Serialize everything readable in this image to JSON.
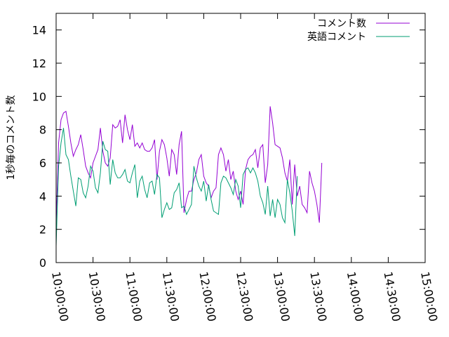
{
  "chart_data": {
    "type": "line",
    "title": "",
    "xlabel": "",
    "ylabel": "1秒毎のコメント数",
    "ylim": [
      0,
      15
    ],
    "yticks": [
      0,
      2,
      4,
      6,
      8,
      10,
      12,
      14
    ],
    "xlim": [
      "10:00:00",
      "15:00:00"
    ],
    "xticks": [
      "10:00:00",
      "10:30:00",
      "11:00:00",
      "11:30:00",
      "12:00:00",
      "12:30:00",
      "13:00:00",
      "13:30:00",
      "14:00:00",
      "14:30:00",
      "15:00:00"
    ],
    "legend_position": "top-right",
    "grid": false,
    "series": [
      {
        "name": "コメント数",
        "color": "#9400d3",
        "points": [
          [
            "10:00:00",
            2.2
          ],
          [
            "10:02:00",
            7.2
          ],
          [
            "10:04:00",
            8.6
          ],
          [
            "10:06:00",
            9.0
          ],
          [
            "10:08:00",
            9.1
          ],
          [
            "10:10:00",
            8.2
          ],
          [
            "10:12:00",
            7.2
          ],
          [
            "10:14:00",
            6.4
          ],
          [
            "10:16:00",
            6.8
          ],
          [
            "10:18:00",
            7.1
          ],
          [
            "10:20:00",
            7.7
          ],
          [
            "10:22:00",
            6.8
          ],
          [
            "10:24:00",
            5.8
          ],
          [
            "10:26:00",
            5.4
          ],
          [
            "10:28:00",
            5.1
          ],
          [
            "10:30:00",
            6.0
          ],
          [
            "10:32:00",
            6.4
          ],
          [
            "10:34:00",
            6.8
          ],
          [
            "10:36:00",
            8.1
          ],
          [
            "10:38:00",
            6.7
          ],
          [
            "10:40:00",
            6.0
          ],
          [
            "10:42:00",
            5.8
          ],
          [
            "10:44:00",
            6.3
          ],
          [
            "10:46:00",
            8.3
          ],
          [
            "10:48:00",
            8.1
          ],
          [
            "10:50:00",
            8.2
          ],
          [
            "10:52:00",
            8.6
          ],
          [
            "10:54:00",
            7.2
          ],
          [
            "10:56:00",
            8.9
          ],
          [
            "10:58:00",
            8.0
          ],
          [
            "11:00:00",
            7.4
          ],
          [
            "11:02:00",
            8.3
          ],
          [
            "11:04:00",
            7.0
          ],
          [
            "11:06:00",
            7.2
          ],
          [
            "11:08:00",
            6.9
          ],
          [
            "11:10:00",
            7.2
          ],
          [
            "11:12:00",
            6.8
          ],
          [
            "11:14:00",
            6.7
          ],
          [
            "11:16:00",
            6.7
          ],
          [
            "11:18:00",
            6.9
          ],
          [
            "11:20:00",
            7.4
          ],
          [
            "11:22:00",
            5.0
          ],
          [
            "11:24:00",
            6.7
          ],
          [
            "11:26:00",
            7.4
          ],
          [
            "11:28:00",
            7.1
          ],
          [
            "11:30:00",
            6.3
          ],
          [
            "11:32:00",
            5.2
          ],
          [
            "11:34:00",
            6.8
          ],
          [
            "11:36:00",
            6.5
          ],
          [
            "11:38:00",
            5.3
          ],
          [
            "11:40:00",
            7.1
          ],
          [
            "11:42:00",
            7.9
          ],
          [
            "11:44:00",
            3.0
          ],
          [
            "11:46:00",
            3.8
          ],
          [
            "11:48:00",
            4.3
          ],
          [
            "11:50:00",
            4.3
          ],
          [
            "11:52:00",
            5.0
          ],
          [
            "11:54:00",
            5.4
          ],
          [
            "11:56:00",
            6.2
          ],
          [
            "11:58:00",
            6.5
          ],
          [
            "12:00:00",
            5.2
          ],
          [
            "12:02:00",
            4.8
          ],
          [
            "12:04:00",
            4.6
          ],
          [
            "12:06:00",
            3.9
          ],
          [
            "12:08:00",
            4.3
          ],
          [
            "12:10:00",
            4.5
          ],
          [
            "12:12:00",
            6.5
          ],
          [
            "12:14:00",
            6.9
          ],
          [
            "12:16:00",
            6.5
          ],
          [
            "12:18:00",
            5.5
          ],
          [
            "12:20:00",
            6.2
          ],
          [
            "12:22:00",
            5.0
          ],
          [
            "12:24:00",
            5.5
          ],
          [
            "12:26:00",
            4.3
          ],
          [
            "12:28:00",
            3.8
          ],
          [
            "12:30:00",
            4.3
          ],
          [
            "12:32:00",
            3.5
          ],
          [
            "12:34:00",
            5.6
          ],
          [
            "12:36:00",
            6.2
          ],
          [
            "12:38:00",
            6.4
          ],
          [
            "12:40:00",
            6.5
          ],
          [
            "12:42:00",
            6.8
          ],
          [
            "12:44:00",
            5.7
          ],
          [
            "12:46:00",
            6.9
          ],
          [
            "12:48:00",
            7.1
          ],
          [
            "12:50:00",
            4.8
          ],
          [
            "12:52:00",
            5.9
          ],
          [
            "12:54:00",
            9.4
          ],
          [
            "12:56:00",
            8.4
          ],
          [
            "12:58:00",
            7.1
          ],
          [
            "13:00:00",
            7.0
          ],
          [
            "13:02:00",
            6.9
          ],
          [
            "13:04:00",
            6.3
          ],
          [
            "13:06:00",
            5.4
          ],
          [
            "13:08:00",
            4.9
          ],
          [
            "13:10:00",
            6.2
          ],
          [
            "13:12:00",
            3.5
          ],
          [
            "13:14:00",
            5.9
          ],
          [
            "13:16:00",
            4.0
          ],
          [
            "13:18:00",
            4.6
          ],
          [
            "13:20:00",
            3.5
          ],
          [
            "13:22:00",
            3.3
          ],
          [
            "13:24:00",
            3.0
          ],
          [
            "13:26:00",
            5.5
          ],
          [
            "13:28:00",
            4.8
          ],
          [
            "13:30:00",
            4.3
          ],
          [
            "13:32:00",
            3.5
          ],
          [
            "13:34:00",
            2.4
          ],
          [
            "13:36:00",
            6.0
          ]
        ]
      },
      {
        "name": "英語コメント",
        "color": "#009e73",
        "points": [
          [
            "10:00:00",
            1.0
          ],
          [
            "10:02:00",
            5.8
          ],
          [
            "10:04:00",
            7.2
          ],
          [
            "10:06:00",
            8.1
          ],
          [
            "10:08:00",
            6.5
          ],
          [
            "10:10:00",
            6.2
          ],
          [
            "10:12:00",
            5.2
          ],
          [
            "10:14:00",
            4.3
          ],
          [
            "10:16:00",
            3.4
          ],
          [
            "10:18:00",
            5.1
          ],
          [
            "10:20:00",
            5.0
          ],
          [
            "10:22:00",
            4.2
          ],
          [
            "10:24:00",
            3.9
          ],
          [
            "10:26:00",
            4.6
          ],
          [
            "10:28:00",
            5.8
          ],
          [
            "10:30:00",
            5.5
          ],
          [
            "10:32:00",
            4.5
          ],
          [
            "10:34:00",
            4.2
          ],
          [
            "10:36:00",
            5.4
          ],
          [
            "10:38:00",
            7.3
          ],
          [
            "10:40:00",
            6.8
          ],
          [
            "10:42:00",
            6.7
          ],
          [
            "10:44:00",
            4.7
          ],
          [
            "10:46:00",
            6.2
          ],
          [
            "10:48:00",
            5.4
          ],
          [
            "10:50:00",
            5.1
          ],
          [
            "10:52:00",
            5.1
          ],
          [
            "10:54:00",
            5.3
          ],
          [
            "10:56:00",
            5.6
          ],
          [
            "10:58:00",
            4.9
          ],
          [
            "11:00:00",
            4.8
          ],
          [
            "11:02:00",
            5.4
          ],
          [
            "11:04:00",
            5.9
          ],
          [
            "11:06:00",
            3.9
          ],
          [
            "11:08:00",
            4.9
          ],
          [
            "11:10:00",
            5.2
          ],
          [
            "11:12:00",
            4.4
          ],
          [
            "11:14:00",
            3.9
          ],
          [
            "11:16:00",
            4.8
          ],
          [
            "11:18:00",
            4.9
          ],
          [
            "11:20:00",
            4.1
          ],
          [
            "11:22:00",
            5.3
          ],
          [
            "11:24:00",
            5.1
          ],
          [
            "11:26:00",
            2.7
          ],
          [
            "11:28:00",
            3.2
          ],
          [
            "11:30:00",
            3.6
          ],
          [
            "11:32:00",
            3.2
          ],
          [
            "11:34:00",
            3.3
          ],
          [
            "11:36:00",
            4.2
          ],
          [
            "11:38:00",
            4.4
          ],
          [
            "11:40:00",
            4.8
          ],
          [
            "11:42:00",
            3.3
          ],
          [
            "11:44:00",
            3.4
          ],
          [
            "11:46:00",
            2.9
          ],
          [
            "11:48:00",
            3.2
          ],
          [
            "11:50:00",
            3.5
          ],
          [
            "11:52:00",
            5.8
          ],
          [
            "11:54:00",
            5.1
          ],
          [
            "11:56:00",
            4.6
          ],
          [
            "11:58:00",
            4.3
          ],
          [
            "12:00:00",
            4.9
          ],
          [
            "12:02:00",
            3.7
          ],
          [
            "12:04:00",
            4.7
          ],
          [
            "12:06:00",
            3.8
          ],
          [
            "12:08:00",
            3.1
          ],
          [
            "12:10:00",
            3.0
          ],
          [
            "12:12:00",
            2.9
          ],
          [
            "12:14:00",
            4.8
          ],
          [
            "12:16:00",
            5.2
          ],
          [
            "12:18:00",
            5.1
          ],
          [
            "12:20:00",
            4.8
          ],
          [
            "12:22:00",
            4.5
          ],
          [
            "12:24:00",
            4.1
          ],
          [
            "12:26:00",
            5.0
          ],
          [
            "12:28:00",
            4.6
          ],
          [
            "12:30:00",
            3.3
          ],
          [
            "12:32:00",
            5.3
          ],
          [
            "12:34:00",
            5.6
          ],
          [
            "12:36:00",
            5.7
          ],
          [
            "12:38:00",
            5.4
          ],
          [
            "12:40:00",
            5.7
          ],
          [
            "12:42:00",
            5.4
          ],
          [
            "12:44:00",
            4.9
          ],
          [
            "12:46:00",
            4.0
          ],
          [
            "12:48:00",
            3.6
          ],
          [
            "12:50:00",
            2.9
          ],
          [
            "12:52:00",
            4.6
          ],
          [
            "12:54:00",
            2.8
          ],
          [
            "12:56:00",
            3.8
          ],
          [
            "12:58:00",
            2.7
          ],
          [
            "13:00:00",
            3.8
          ],
          [
            "13:02:00",
            3.5
          ],
          [
            "13:04:00",
            2.7
          ],
          [
            "13:06:00",
            2.4
          ],
          [
            "13:08:00",
            5.0
          ],
          [
            "13:10:00",
            4.2
          ],
          [
            "13:12:00",
            3.1
          ],
          [
            "13:14:00",
            1.6
          ],
          [
            "13:16:00",
            5.2
          ]
        ]
      }
    ]
  }
}
